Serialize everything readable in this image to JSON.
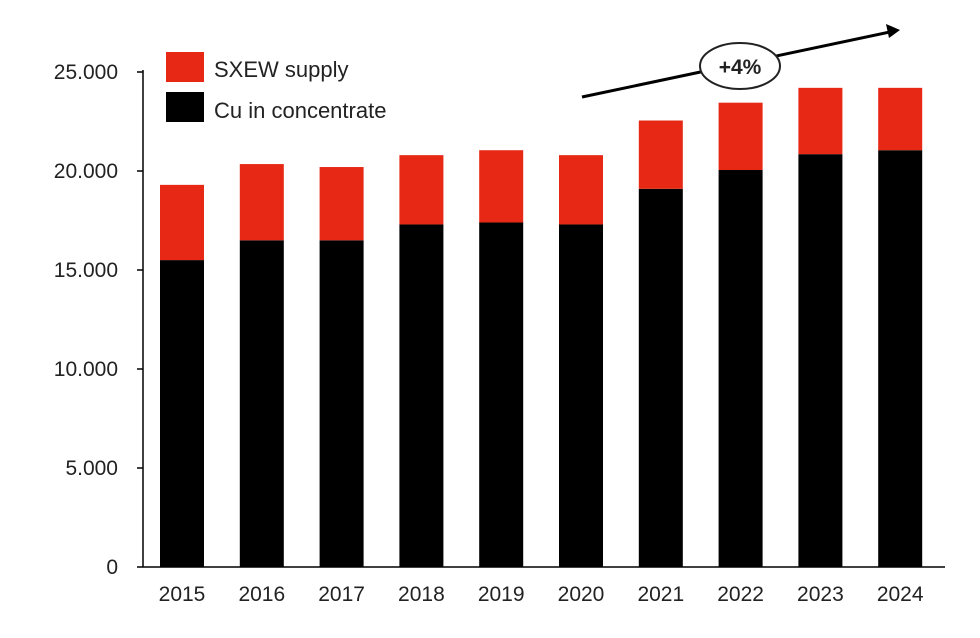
{
  "chart_data": {
    "type": "bar",
    "stacked": true,
    "categories": [
      "2015",
      "2016",
      "2017",
      "2018",
      "2019",
      "2020",
      "2021",
      "2022",
      "2023",
      "2024"
    ],
    "series": [
      {
        "name": "Cu in concentrate",
        "color": "#000000",
        "values": [
          15500,
          16500,
          16500,
          17300,
          17400,
          17300,
          19100,
          20050,
          20850,
          21050
        ]
      },
      {
        "name": "SXEW supply",
        "color": "#e62814",
        "values": [
          3800,
          3850,
          3700,
          3500,
          3650,
          3500,
          3450,
          3400,
          3350,
          3150
        ]
      }
    ],
    "ylim": [
      0,
      25000
    ],
    "yticks": [
      0,
      5000,
      10000,
      15000,
      20000,
      25000
    ],
    "ytick_labels": [
      "0",
      "5.000",
      "10.000",
      "15.000",
      "20.000",
      "25.000"
    ],
    "legend": {
      "placement": "top-left",
      "order": [
        "SXEW supply",
        "Cu in concentrate"
      ]
    },
    "grid": false,
    "annotation": {
      "text": "+4%",
      "type": "trend-arrow"
    }
  }
}
